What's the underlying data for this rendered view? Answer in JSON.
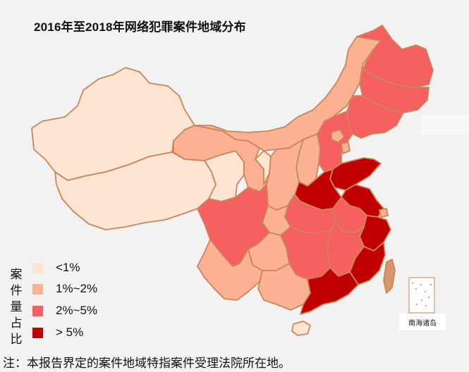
{
  "title": "2016年至2018年网络犯罪案件地域分布",
  "legend": {
    "title": "案件量占比",
    "items": [
      {
        "label": "<1%",
        "color": "#fde5d2"
      },
      {
        "label": "1%~2%",
        "color": "#fbb192"
      },
      {
        "label": "2%~5%",
        "color": "#f76060"
      },
      {
        "label": "> 5%",
        "color": "#c00000"
      }
    ]
  },
  "inset_label": "南海诸岛",
  "note": "注：本报告界定的案件地域特指案件受理法院所在地。",
  "colors": {
    "background": "#f2f2f2",
    "border": "#c8865a",
    "level1": "#fde5d2",
    "level2": "#fbb192",
    "level3": "#f76060",
    "level4": "#c00000"
  }
}
